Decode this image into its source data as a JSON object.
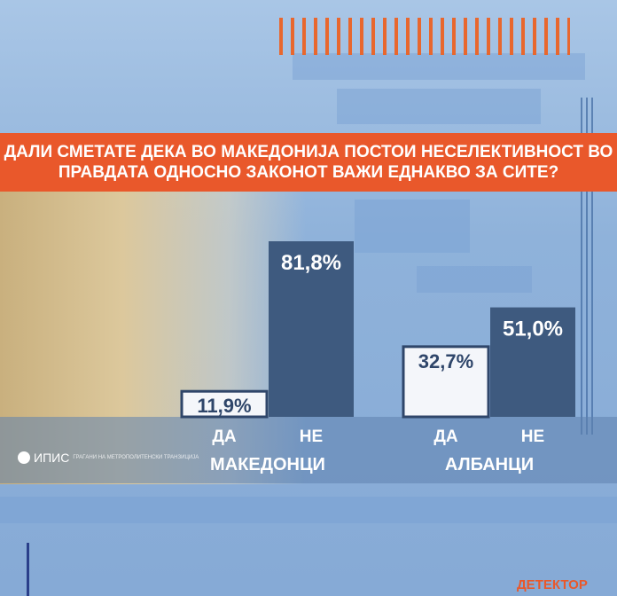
{
  "title": "ДАЛИ СМЕТАТЕ ДЕКА ВО МАКЕДОНИЈА ПОСТОИ НЕСЕЛЕКТИВНОСТ ВО ПРАВДАТА ОДНОСНО ЗАКОНОТ ВАЖИ ЕДНАКВО ЗА СИТЕ?",
  "source_logo": {
    "name": "ИПИС",
    "tagline": "ГРАЃАНИ НА МЕТРОПОЛИТЕНСКИ ТРАНЗИЦИЈА"
  },
  "brand_logo": "ДЕТЕКТОР",
  "colors": {
    "banner": "#e9582b",
    "yes_bar": "#f4f6fa",
    "no_bar": "#3e5a7f",
    "background": "#8fb2da"
  },
  "chart_data": {
    "type": "bar",
    "groups": [
      "МАКЕДОНЦИ",
      "АЛБАНЦИ"
    ],
    "categories": [
      "ДА",
      "НЕ"
    ],
    "series": [
      {
        "group": "МАКЕДОНЦИ",
        "values": [
          11.9,
          81.8
        ],
        "labels": [
          "11,9%",
          "81,8%"
        ]
      },
      {
        "group": "АЛБАНЦИ",
        "values": [
          32.7,
          51.0
        ],
        "labels": [
          "32,7%",
          "51,0%"
        ]
      }
    ],
    "unit": "%",
    "ylim": [
      0,
      100
    ],
    "grid": false
  }
}
